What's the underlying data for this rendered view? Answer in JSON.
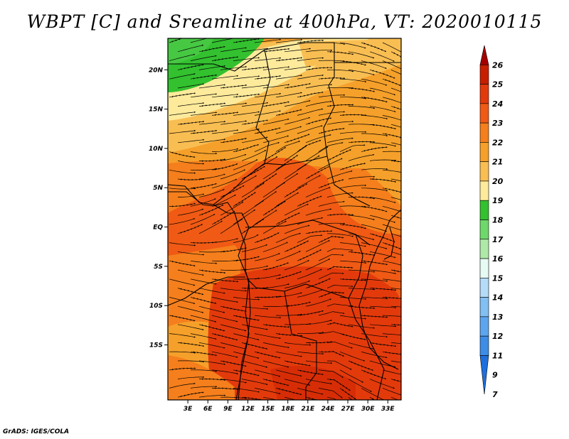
{
  "title": "WBPT [C] and Sreamline at 400hPa, VT: 2020010115",
  "credit": "GrADS: IGES/COLA",
  "map": {
    "lon_range": [
      0,
      35
    ],
    "lat_range": [
      -22,
      24
    ],
    "lat_ticks": [
      "20N",
      "15N",
      "10N",
      "5N",
      "EQ",
      "5S",
      "10S",
      "15S"
    ],
    "lon_ticks": [
      "3E",
      "6E",
      "9E",
      "12E",
      "15E",
      "18E",
      "21E",
      "24E",
      "27E",
      "30E",
      "33E"
    ]
  },
  "colorbar": {
    "labels": [
      "26",
      "25",
      "24",
      "23",
      "22",
      "21",
      "20",
      "19",
      "18",
      "17",
      "16",
      "15",
      "14",
      "13",
      "12",
      "11",
      "9",
      "7"
    ],
    "colors": [
      "#a50000",
      "#c81e00",
      "#e33a0c",
      "#f05a14",
      "#f57f1c",
      "#f5a02a",
      "#f9be52",
      "#fdea9b",
      "#33c12f",
      "#6ed86a",
      "#aee9a8",
      "#e6fbf3",
      "#b4dcf8",
      "#82c0f4",
      "#5da6ef",
      "#3d8de6",
      "#1e6fdc"
    ]
  }
}
